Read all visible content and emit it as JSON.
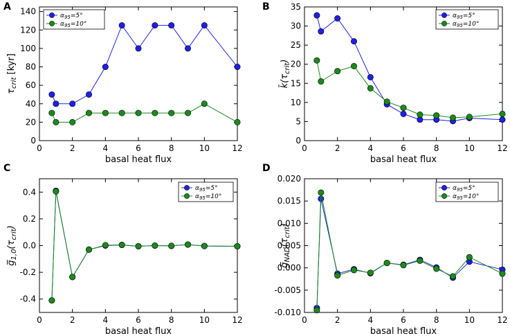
{
  "chart_data": [
    {
      "type": "line",
      "panel": "A",
      "x": [
        0.75,
        1,
        2,
        3,
        4,
        5,
        6,
        7,
        8,
        9,
        10,
        12
      ],
      "series": [
        {
          "name": "α95 = 5°",
          "color": "#1f1fe8",
          "values": [
            50,
            40,
            40,
            50,
            80,
            125,
            100,
            125,
            125,
            100,
            125,
            80
          ]
        },
        {
          "name": "α95 = 10°",
          "color": "#1b8a1b",
          "values": [
            30,
            20,
            20,
            30,
            30,
            30,
            30,
            30,
            30,
            30,
            40,
            20
          ]
        }
      ],
      "xlabel": "basal heat flux",
      "ylabel": "τ_crit [kyr]",
      "xlim": [
        0,
        12
      ],
      "ylim": [
        0,
        145
      ],
      "xticks": [
        0,
        2,
        4,
        6,
        8,
        10,
        12
      ],
      "xtick_labels": [
        "0",
        "2",
        "4",
        "6",
        "8",
        "10",
        "12"
      ],
      "yticks": [
        0,
        20,
        40,
        60,
        80,
        100,
        120,
        140
      ],
      "ytick_labels": [
        "0",
        "20",
        "40",
        "60",
        "80",
        "100",
        "120",
        "140"
      ],
      "legend": "top-left"
    },
    {
      "type": "line",
      "panel": "B",
      "x": [
        0.75,
        1,
        2,
        3,
        4,
        5,
        6,
        7,
        8,
        9,
        10,
        12
      ],
      "series": [
        {
          "name": "α95 = 5°",
          "color": "#1f1fe8",
          "values": [
            32.8,
            28.6,
            32.0,
            26.0,
            16.6,
            9.5,
            7.0,
            5.5,
            5.5,
            5.1,
            5.9,
            5.5
          ]
        },
        {
          "name": "α95 = 10°",
          "color": "#1b8a1b",
          "values": [
            21.0,
            15.5,
            18.2,
            19.5,
            13.7,
            10.2,
            8.6,
            6.8,
            6.6,
            6.0,
            6.2,
            7.0
          ]
        }
      ],
      "xlabel": "basal heat flux",
      "ylabel": "k̄(τ_crit)",
      "xlim": [
        0,
        12
      ],
      "ylim": [
        0,
        35
      ],
      "xticks": [
        0,
        2,
        4,
        6,
        8,
        10,
        12
      ],
      "xtick_labels": [
        "0",
        "2",
        "4",
        "6",
        "8",
        "10",
        "12"
      ],
      "yticks": [
        0,
        5,
        10,
        15,
        20,
        25,
        30,
        35
      ],
      "ytick_labels": [
        "0",
        "5",
        "10",
        "15",
        "20",
        "25",
        "30",
        "35"
      ],
      "legend": "top-right"
    },
    {
      "type": "line",
      "panel": "C",
      "x": [
        0.75,
        1,
        2,
        3,
        4,
        5,
        6,
        7,
        8,
        9,
        10,
        12
      ],
      "series": [
        {
          "name": "α95 = 5°",
          "color": "#1f1fe8",
          "values": [
            -0.41,
            0.41,
            -0.235,
            -0.03,
            0.0,
            0.005,
            -0.005,
            0.0,
            -0.002,
            0.008,
            -0.003,
            -0.005
          ]
        },
        {
          "name": "α95 = 10°",
          "color": "#1b8a1b",
          "values": [
            -0.41,
            0.405,
            -0.235,
            -0.03,
            0.003,
            0.005,
            -0.005,
            0.0,
            -0.002,
            0.008,
            -0.003,
            -0.005
          ]
        }
      ],
      "xlabel": "basal heat flux",
      "ylabel": "g̅_{1,0}(τ_crit)",
      "xlim": [
        0,
        12
      ],
      "ylim": [
        -0.5,
        0.5
      ],
      "xticks": [
        0,
        2,
        4,
        6,
        8,
        10,
        12
      ],
      "xtick_labels": [
        "0",
        "2",
        "4",
        "6",
        "8",
        "10",
        "12"
      ],
      "yticks": [
        -0.4,
        -0.2,
        0.0,
        0.2,
        0.4
      ],
      "ytick_labels": [
        "-0.4",
        "-0.2",
        "0.0",
        "0.2",
        "0.4"
      ],
      "legend": "top-right"
    },
    {
      "type": "line",
      "panel": "D",
      "x": [
        0.75,
        1,
        2,
        3,
        4,
        5,
        6,
        7,
        8,
        9,
        10,
        12
      ],
      "series": [
        {
          "name": "α95 = 5°",
          "color": "#1f1fe8",
          "values": [
            -0.009,
            0.0155,
            -0.0013,
            -0.0003,
            -0.0012,
            0.0011,
            0.0007,
            0.0018,
            0.0001,
            -0.0022,
            0.0014,
            -0.0004
          ]
        },
        {
          "name": "α95 = 10°",
          "color": "#1b8a1b",
          "values": [
            -0.0095,
            0.0169,
            -0.0017,
            -0.0005,
            -0.0011,
            0.0011,
            0.0006,
            0.0016,
            -0.0002,
            -0.0019,
            0.0024,
            -0.0013
          ]
        }
      ],
      "xlabel": "basal heat flux",
      "ylabel": "g̅_NAD(τ_crit)",
      "xlim": [
        0,
        12
      ],
      "ylim": [
        -0.01,
        0.02
      ],
      "xticks": [
        0,
        2,
        4,
        6,
        8,
        10,
        12
      ],
      "xtick_labels": [
        "0",
        "2",
        "4",
        "6",
        "8",
        "10",
        "12"
      ],
      "yticks": [
        -0.01,
        -0.005,
        0.0,
        0.005,
        0.01,
        0.015,
        0.02
      ],
      "ytick_labels": [
        "-0.010",
        "-0.005",
        "0.000",
        "0.005",
        "0.010",
        "0.015",
        "0.020"
      ],
      "legend": "top-right"
    }
  ]
}
